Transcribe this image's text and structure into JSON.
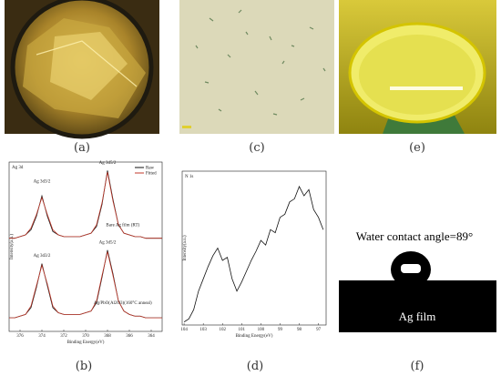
{
  "panels": {
    "a": "(a)",
    "b": "(b)",
    "c": "(c)",
    "d": "(d)",
    "e": "(e)",
    "f": "(f)"
  },
  "contact_angle": {
    "title": "Water contact angle=89°",
    "film": "Ag film"
  },
  "chart_data": [
    {
      "type": "line",
      "label": "Ag 3d",
      "x_label": "Binding Energy(eV)",
      "y_label": "Intensity(a.u.)",
      "xlim": [
        377,
        363
      ],
      "ylim": [
        0,
        100
      ],
      "xticks": [
        376,
        374,
        372,
        370,
        368,
        366,
        364
      ],
      "x": [
        377,
        376.5,
        376,
        375.5,
        375,
        374.5,
        374,
        373.5,
        373,
        372.5,
        372,
        371.5,
        371,
        370.5,
        370,
        369.5,
        369,
        368.5,
        368,
        367.5,
        367,
        366.5,
        366,
        365.5,
        365,
        364.5,
        364,
        363.5,
        363
      ],
      "series": [
        {
          "name": "Raw",
          "color": "#111111",
          "values": [
            55,
            55,
            56,
            57,
            60,
            68,
            80,
            68,
            59,
            57,
            56,
            56,
            56,
            56,
            57,
            58,
            62,
            75,
            95,
            78,
            63,
            58,
            57,
            56,
            56,
            55,
            55,
            55,
            55
          ]
        },
        {
          "name": "Fitted",
          "color": "#c0392b",
          "values": [
            55,
            55,
            56,
            57,
            61,
            69,
            79,
            69,
            60,
            57,
            56,
            56,
            56,
            56,
            57,
            58,
            63,
            76,
            94,
            77,
            63,
            58,
            57,
            56,
            56,
            55,
            55,
            55,
            55
          ]
        },
        {
          "color": "#111111",
          "values": [
            8,
            8,
            9,
            10,
            14,
            26,
            40,
            27,
            14,
            11,
            10,
            10,
            10,
            10,
            11,
            12,
            17,
            32,
            48,
            34,
            18,
            12,
            10,
            9,
            9,
            8,
            8,
            8,
            8
          ]
        },
        {
          "color": "#c0392b",
          "values": [
            8,
            8,
            9,
            10,
            15,
            27,
            39,
            28,
            15,
            11,
            10,
            10,
            10,
            10,
            11,
            12,
            18,
            33,
            47,
            33,
            18,
            12,
            10,
            9,
            9,
            8,
            8,
            8,
            8
          ]
        }
      ],
      "annotations": [
        "Ag 3d3/2",
        "Ag 3d5/2",
        "Ag 3d3/2",
        "Ag 3d5/2",
        "Bare Ag film (RT)",
        "Ag/PbO(Al2O3)(160°C anneal)"
      ]
    },
    {
      "type": "line",
      "label": "N 1s",
      "x_label": "Binding Energy(eV)",
      "y_label": "Intensity(a.u.)",
      "xlim": [
        104.1,
        96.6
      ],
      "ylim": [
        0,
        100
      ],
      "xticks": [
        104,
        103,
        102,
        101,
        100,
        99,
        98,
        97
      ],
      "x": [
        104,
        103.75,
        103.5,
        103.25,
        103,
        102.75,
        102.5,
        102.25,
        102,
        101.75,
        101.5,
        101.25,
        101,
        100.75,
        100.5,
        100.25,
        100,
        99.75,
        99.5,
        99.25,
        99,
        98.75,
        98.5,
        98.25,
        98,
        97.75,
        97.5,
        97.25,
        97,
        96.75
      ],
      "series": [
        {
          "color": "#111111",
          "values": [
            2,
            4,
            10,
            22,
            30,
            38,
            45,
            50,
            42,
            44,
            30,
            22,
            28,
            35,
            42,
            48,
            55,
            52,
            62,
            60,
            70,
            72,
            80,
            82,
            90,
            84,
            88,
            75,
            70,
            62
          ]
        }
      ]
    }
  ]
}
